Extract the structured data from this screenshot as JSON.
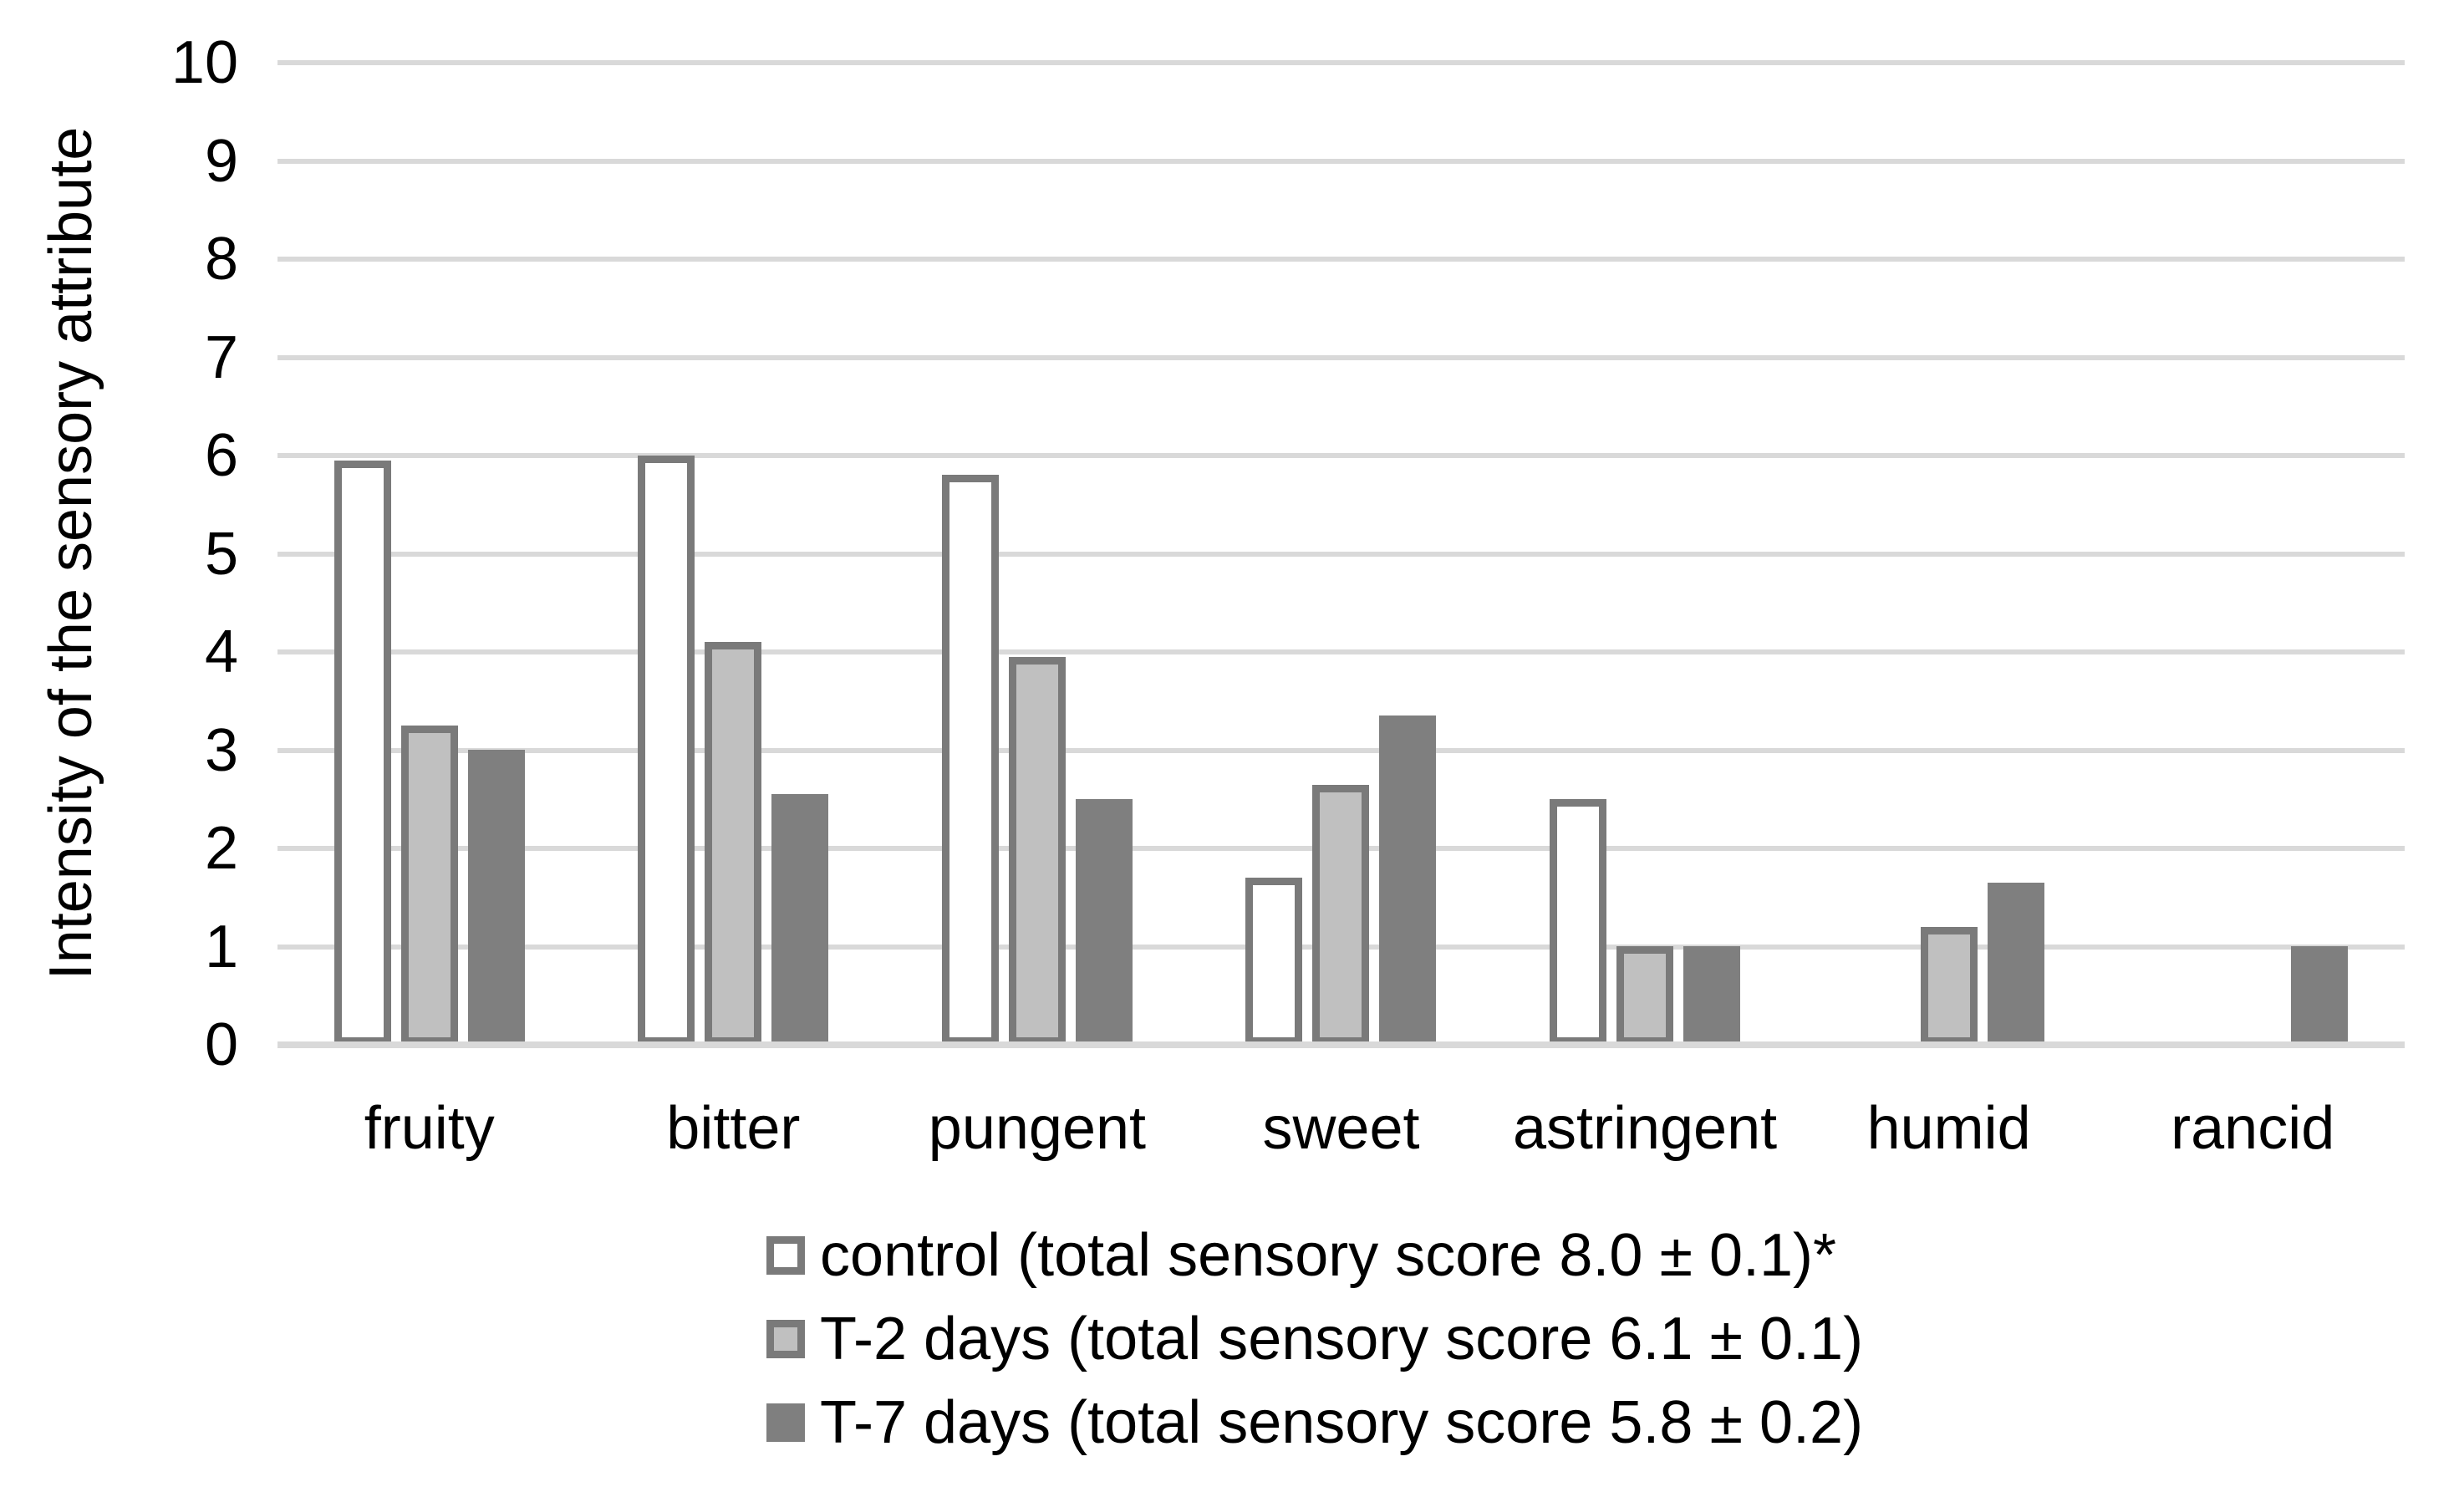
{
  "chart_data": {
    "type": "bar",
    "title": "",
    "xlabel": "",
    "ylabel": "Intensity of the sensory attribute",
    "ylim": [
      0,
      10
    ],
    "yticks": [
      0,
      1,
      2,
      3,
      4,
      5,
      6,
      7,
      8,
      9,
      10
    ],
    "grid": true,
    "legend_position": "bottom",
    "categories": [
      "fruity",
      "bitter",
      "pungent",
      "sweet",
      "astringent",
      "humid",
      "rancid"
    ],
    "series": [
      {
        "name": "control (total sensory score 8.0 ± 0.1)*",
        "fill": "#FFFFFF",
        "border": "#7A7A7A",
        "values": [
          5.95,
          6.0,
          5.8,
          1.7,
          2.5,
          0,
          0
        ]
      },
      {
        "name": "T-2 days (total sensory score 6.1 ± 0.1)",
        "fill": "#C0C0C0",
        "border": "#7A7A7A",
        "values": [
          3.25,
          4.1,
          3.95,
          2.65,
          1.0,
          1.2,
          0
        ]
      },
      {
        "name": "T-7 days (total sensory score 5.8 ± 0.2)",
        "fill": "#7F7F7F",
        "border": "#7F7F7F",
        "values": [
          3.0,
          2.55,
          2.5,
          3.35,
          1.0,
          1.65,
          1.0
        ]
      }
    ],
    "colors": {
      "gridline": "#D9D9D9",
      "axis_line": "#D9D9D9",
      "text": "#000000",
      "background": "#FFFFFF"
    }
  }
}
